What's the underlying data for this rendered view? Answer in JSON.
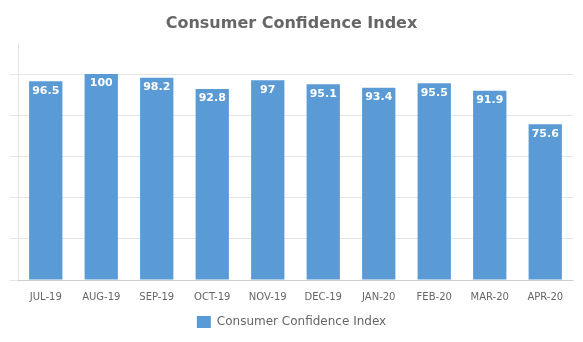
{
  "chart_data": {
    "type": "bar",
    "title": "Consumer Confidence Index",
    "categories": [
      "JUL-19",
      "AUG-19",
      "SEP-19",
      "OCT-19",
      "NOV-19",
      "DEC-19",
      "JAN-20",
      "FEB-20",
      "MAR-20",
      "APR-20"
    ],
    "series": [
      {
        "name": "Consumer Confidence Index",
        "color": "#5B9BD5",
        "values": [
          96.5,
          100,
          98.2,
          92.8,
          97,
          95.1,
          93.4,
          95.5,
          91.9,
          75.6
        ]
      }
    ],
    "ylim": [
      0,
      115
    ],
    "yticks": [
      0,
      20,
      40,
      60,
      80,
      100
    ],
    "grid": true,
    "legend": "bottom",
    "data_labels": true,
    "tick_labels": "x"
  }
}
